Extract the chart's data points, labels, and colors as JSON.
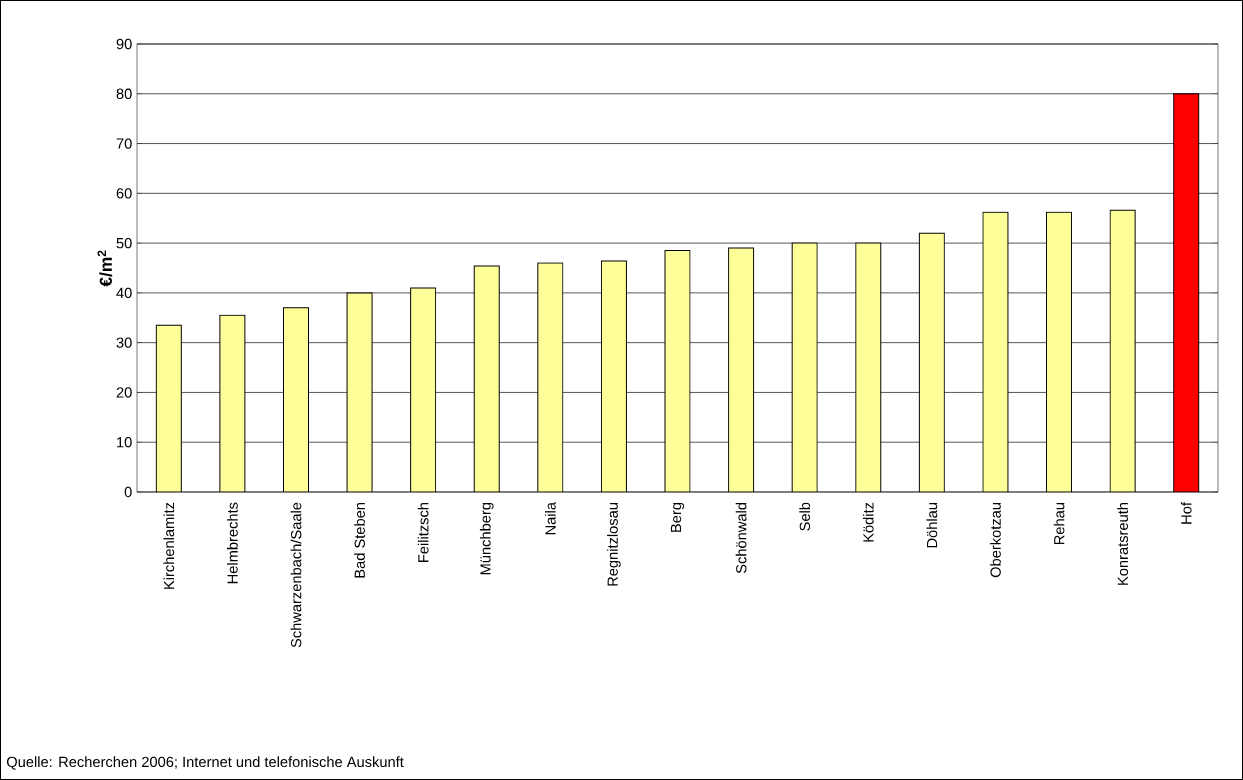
{
  "chart_data": {
    "type": "bar",
    "ylabel": "€/m$^{2}$",
    "categories": [
      "Kirchenlamitz",
      "Helmbrechts",
      "Schwarzenbach/Saale",
      "Bad Steben",
      "Feilitzsch",
      "Münchberg",
      "Naila",
      "Regnitzlosau",
      "Berg",
      "Schönwald",
      "Selb",
      "Köditz",
      "Döhlau",
      "Oberkotzau",
      "Rehau",
      "Konratsreuth",
      "Hof"
    ],
    "values": [
      33.5,
      35.5,
      37,
      40,
      41,
      45.4,
      46,
      46.4,
      48.5,
      49,
      50,
      50,
      52,
      56.2,
      56.2,
      56.6,
      80
    ],
    "colors": [
      "#ffff99",
      "#ffff99",
      "#ffff99",
      "#ffff99",
      "#ffff99",
      "#ffff99",
      "#ffff99",
      "#ffff99",
      "#ffff99",
      "#ffff99",
      "#ffff99",
      "#ffff99",
      "#ffff99",
      "#ffff99",
      "#ffff99",
      "#ffff99",
      "#ff0000"
    ],
    "ylim": [
      0,
      90
    ],
    "yticks": [
      0,
      10,
      20,
      30,
      40,
      50,
      60,
      70,
      80,
      90
    ],
    "grid": "y",
    "annotations": [
      "Quelle: Recherchen 2006; Internet und telefonische Auskunft"
    ]
  }
}
